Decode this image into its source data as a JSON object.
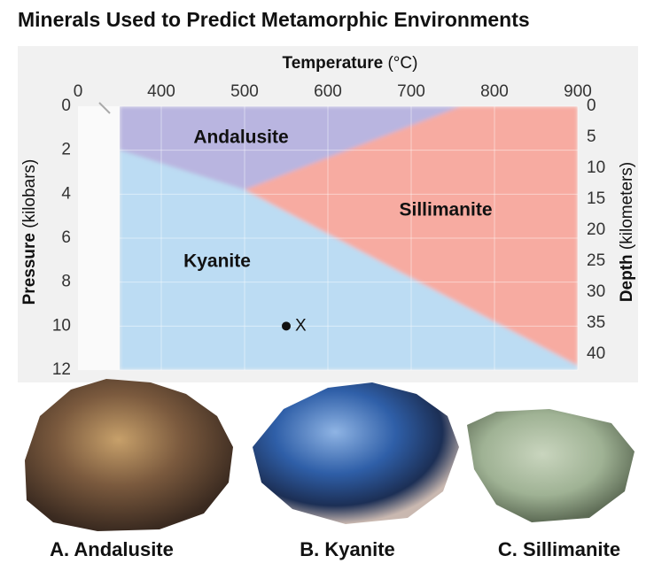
{
  "chart_data": {
    "type": "phase",
    "title": "Minerals Used to Predict Metamorphic Environments",
    "x_label": "Temperature",
    "x_unit": "(°C)",
    "y_label": "Pressure",
    "y_unit": "(kilobars)",
    "y2_label": "Depth",
    "y2_unit": "(kilometers)",
    "xlim": [
      0,
      900
    ],
    "xbreak": 350,
    "xticks": [
      0,
      400,
      500,
      600,
      700,
      800,
      900
    ],
    "ylim": [
      0,
      12
    ],
    "yticks": [
      0,
      2,
      4,
      6,
      8,
      10,
      12
    ],
    "y2lim": [
      0,
      42.6
    ],
    "y2ticks": [
      0,
      5,
      10,
      15,
      20,
      25,
      30,
      35,
      40
    ],
    "grid": true,
    "regions": [
      {
        "name": "Andalusite",
        "color": "#b9b5e0",
        "x": [
          350,
          350,
          500,
          760
        ],
        "y": [
          0,
          2,
          3.8,
          0
        ]
      },
      {
        "name": "Kyanite",
        "color": "#bcdcf3",
        "x": [
          350,
          350,
          900,
          900,
          500
        ],
        "y": [
          2,
          12,
          12,
          11.8,
          3.8
        ]
      },
      {
        "name": "Sillimanite",
        "color": "#f7aba1",
        "x": [
          500,
          760,
          900,
          900
        ],
        "y": [
          3.8,
          0,
          0,
          11.8
        ]
      }
    ],
    "point": {
      "label": "X",
      "x": 550,
      "y": 10
    },
    "captions": [
      "A. Andalusite",
      "B. Kyanite",
      "C. Sillimanite"
    ]
  }
}
